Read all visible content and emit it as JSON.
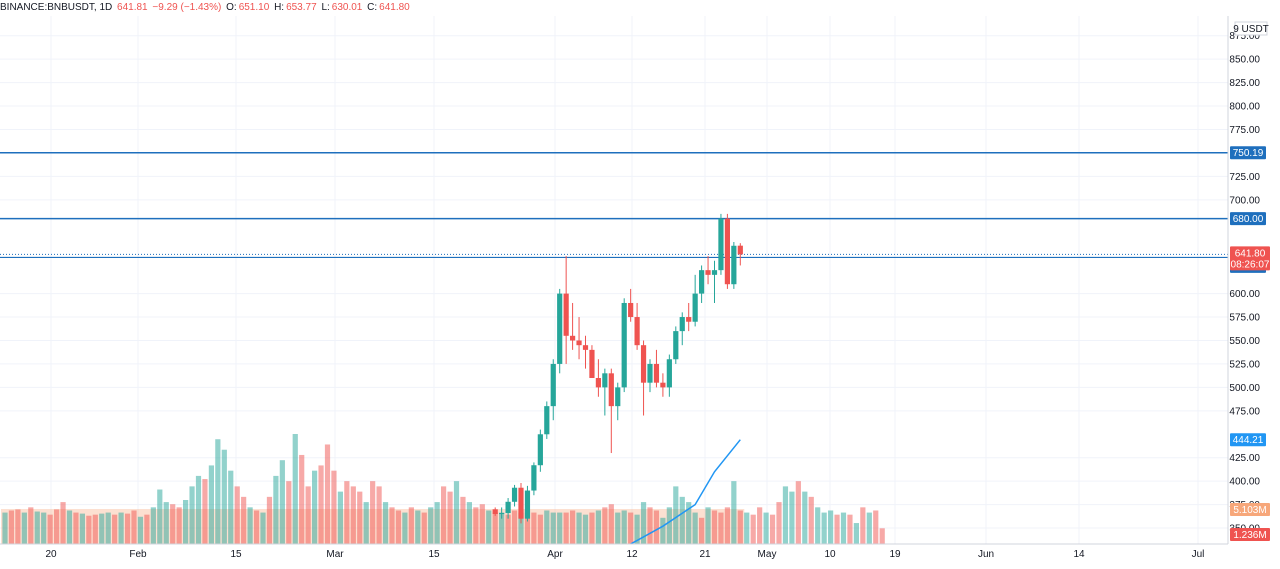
{
  "header": {
    "symbol": "BINANCE:BNBUSDT, 1D",
    "last": "641.81",
    "change": "−9.29 (−1.43%)",
    "o_label": "O:",
    "o": "651.10",
    "h_label": "H:",
    "h": "653.77",
    "l_label": "L:",
    "l": "630.01",
    "c_label": "C:",
    "c": "641.80"
  },
  "price_axis": {
    "unit": "9 USDT",
    "ticks": [
      875,
      850,
      825,
      800,
      775,
      725,
      700,
      600,
      575,
      550,
      525,
      500,
      475,
      425,
      400,
      375,
      350
    ],
    "tick_labels": [
      "875.00",
      "850.00",
      "825.00",
      "800.00",
      "775.00",
      "725.00",
      "700.00",
      "600.00",
      "575.00",
      "550.00",
      "525.00",
      "500.00",
      "475.00",
      "425.00",
      "400.00",
      "375.00",
      "350.00"
    ]
  },
  "time_axis": {
    "labels": [
      "20",
      "Feb",
      "15",
      "Mar",
      "15",
      "Apr",
      "12",
      "21",
      "May",
      "10",
      "19",
      "Jun",
      "14",
      "Jul"
    ]
  },
  "horizontal_lines": [
    {
      "price": 750.19,
      "label": "750.19"
    },
    {
      "price": 680.0,
      "label": "680.00"
    },
    {
      "price": 638.57,
      "label": "638.57"
    }
  ],
  "price_tag": {
    "price": 641.8,
    "label": "641.80",
    "countdown": "08:26:07"
  },
  "ma_tag": {
    "price": 444.21,
    "label": "444.21"
  },
  "volume_tags": [
    {
      "label": "5.103M"
    },
    {
      "label": "1.236M"
    }
  ],
  "colors": {
    "up": "#26a69a",
    "down": "#ef5350",
    "line": "#1e6fbd",
    "ma": "#2196f3",
    "volume_profile": "#f7a77a"
  },
  "chart_data": {
    "type": "candlestick",
    "x_range": [
      "2021-01-14",
      "2021-07-07"
    ],
    "y_range": [
      333,
      896
    ],
    "candles": [
      [
        "2021-03-31",
        370,
        372,
        363,
        365
      ],
      [
        "2021-04-01",
        365,
        372,
        360,
        366
      ],
      [
        "2021-04-02",
        366,
        382,
        360,
        378
      ],
      [
        "2021-04-03",
        378,
        396,
        373,
        393
      ],
      [
        "2021-04-04",
        393,
        398,
        355,
        360
      ],
      [
        "2021-04-05",
        360,
        395,
        357,
        390
      ],
      [
        "2021-04-06",
        390,
        420,
        385,
        417
      ],
      [
        "2021-04-07",
        417,
        455,
        410,
        450
      ],
      [
        "2021-04-08",
        450,
        485,
        445,
        480
      ],
      [
        "2021-04-09",
        480,
        530,
        465,
        525
      ],
      [
        "2021-04-10",
        525,
        605,
        515,
        600
      ],
      [
        "2021-04-11",
        600,
        640,
        525,
        555
      ],
      [
        "2021-04-12",
        555,
        590,
        540,
        550
      ],
      [
        "2021-04-13",
        550,
        575,
        530,
        545
      ],
      [
        "2021-04-14",
        545,
        555,
        520,
        540
      ],
      [
        "2021-04-15",
        540,
        545,
        510,
        510
      ],
      [
        "2021-04-16",
        510,
        530,
        490,
        500
      ],
      [
        "2021-04-17",
        500,
        520,
        470,
        515
      ],
      [
        "2021-04-18",
        515,
        520,
        430,
        480
      ],
      [
        "2021-04-19",
        480,
        505,
        465,
        500
      ],
      [
        "2021-04-20",
        500,
        595,
        495,
        590
      ],
      [
        "2021-04-21",
        590,
        605,
        570,
        575
      ],
      [
        "2021-04-22",
        575,
        590,
        540,
        545
      ],
      [
        "2021-04-23",
        545,
        550,
        470,
        505
      ],
      [
        "2021-04-24",
        505,
        530,
        495,
        525
      ],
      [
        "2021-04-25",
        525,
        540,
        500,
        505
      ],
      [
        "2021-04-26",
        505,
        515,
        490,
        500
      ],
      [
        "2021-04-27",
        500,
        535,
        490,
        530
      ],
      [
        "2021-04-28",
        530,
        565,
        525,
        560
      ],
      [
        "2021-04-29",
        560,
        580,
        545,
        575
      ],
      [
        "2021-04-30",
        575,
        590,
        560,
        570
      ],
      [
        "2021-05-01",
        570,
        620,
        565,
        600
      ],
      [
        "2021-05-02",
        600,
        630,
        590,
        625
      ],
      [
        "2021-05-03",
        625,
        640,
        610,
        620
      ],
      [
        "2021-05-04",
        620,
        635,
        590,
        625
      ],
      [
        "2021-05-05",
        625,
        685,
        620,
        680
      ],
      [
        "2021-05-06",
        680,
        685,
        605,
        610
      ],
      [
        "2021-05-07",
        610,
        655,
        605,
        651
      ],
      [
        "2021-05-08",
        651.1,
        653.77,
        630.01,
        641.8
      ]
    ],
    "moving_average": [
      [
        "2021-04-21",
        333
      ],
      [
        "2021-04-26",
        352
      ],
      [
        "2021-05-01",
        375
      ],
      [
        "2021-05-04",
        410
      ],
      [
        "2021-05-08",
        444.21
      ]
    ],
    "volume": {
      "start": "2021-01-14",
      "values": [
        0.3,
        0.32,
        0.33,
        0.3,
        0.35,
        0.31,
        0.3,
        0.28,
        0.33,
        0.4,
        0.32,
        0.3,
        0.29,
        0.27,
        0.28,
        0.29,
        0.3,
        0.28,
        0.3,
        0.29,
        0.32,
        0.26,
        0.28,
        0.35,
        0.52,
        0.4,
        0.38,
        0.35,
        0.42,
        0.55,
        0.65,
        0.62,
        0.75,
        1.0,
        0.9,
        0.7,
        0.55,
        0.45,
        0.35,
        0.32,
        0.3,
        0.45,
        0.65,
        0.8,
        0.6,
        1.05,
        0.85,
        0.55,
        0.7,
        0.75,
        0.95,
        0.7,
        0.5,
        0.6,
        0.55,
        0.5,
        0.4,
        0.6,
        0.55,
        0.4,
        0.35,
        0.32,
        0.3,
        0.35,
        0.32,
        0.3,
        0.35,
        0.4,
        0.55,
        0.5,
        0.6,
        0.45,
        0.4,
        0.35,
        0.38,
        0.32,
        0.3,
        0.3,
        0.28,
        0.32,
        0.3,
        0.3,
        0.3,
        0.28,
        0.32,
        0.3,
        0.3,
        0.3,
        0.32,
        0.3,
        0.28,
        0.3,
        0.32,
        0.35,
        0.38,
        0.3,
        0.32,
        0.3,
        0.28,
        0.4,
        0.35,
        0.32,
        0.25,
        0.35,
        0.55,
        0.45,
        0.4,
        0.3,
        0.25,
        0.35,
        0.32,
        0.3,
        0.35,
        0.6,
        0.32,
        0.3,
        0.28,
        0.35,
        0.3,
        0.28,
        0.4,
        0.55,
        0.5,
        0.6,
        0.5,
        0.45,
        0.35,
        0.3,
        0.32,
        0.28,
        0.3,
        0.28,
        0.2,
        0.35,
        0.3,
        0.32,
        0.15
      ],
      "up_flags": [
        1,
        0,
        0,
        1,
        0,
        1,
        1,
        0,
        0,
        0,
        1,
        0,
        1,
        0,
        0,
        1,
        1,
        0,
        1,
        0,
        0,
        1,
        0,
        1,
        1,
        1,
        0,
        0,
        1,
        1,
        1,
        0,
        1,
        1,
        1,
        1,
        0,
        0,
        1,
        0,
        1,
        0,
        1,
        1,
        0,
        1,
        0,
        0,
        1,
        0,
        0,
        0,
        1,
        0,
        0,
        0,
        1,
        0,
        0,
        1,
        0,
        0,
        1,
        0,
        1,
        0,
        1,
        1,
        0,
        0,
        1,
        0,
        1,
        0,
        0,
        1,
        0,
        1,
        0,
        0,
        1,
        0,
        0,
        0,
        1,
        1,
        1,
        0,
        0,
        1,
        1,
        0,
        1,
        0,
        0,
        1,
        1,
        0,
        1,
        1,
        0,
        0,
        1,
        1,
        1,
        1,
        1,
        1,
        0,
        1,
        0,
        0,
        0,
        1,
        0,
        1,
        0,
        0,
        1,
        0,
        0,
        1,
        1,
        0,
        1,
        0,
        1,
        1,
        1,
        0,
        1,
        0,
        1,
        0,
        1,
        0,
        0
      ]
    }
  }
}
